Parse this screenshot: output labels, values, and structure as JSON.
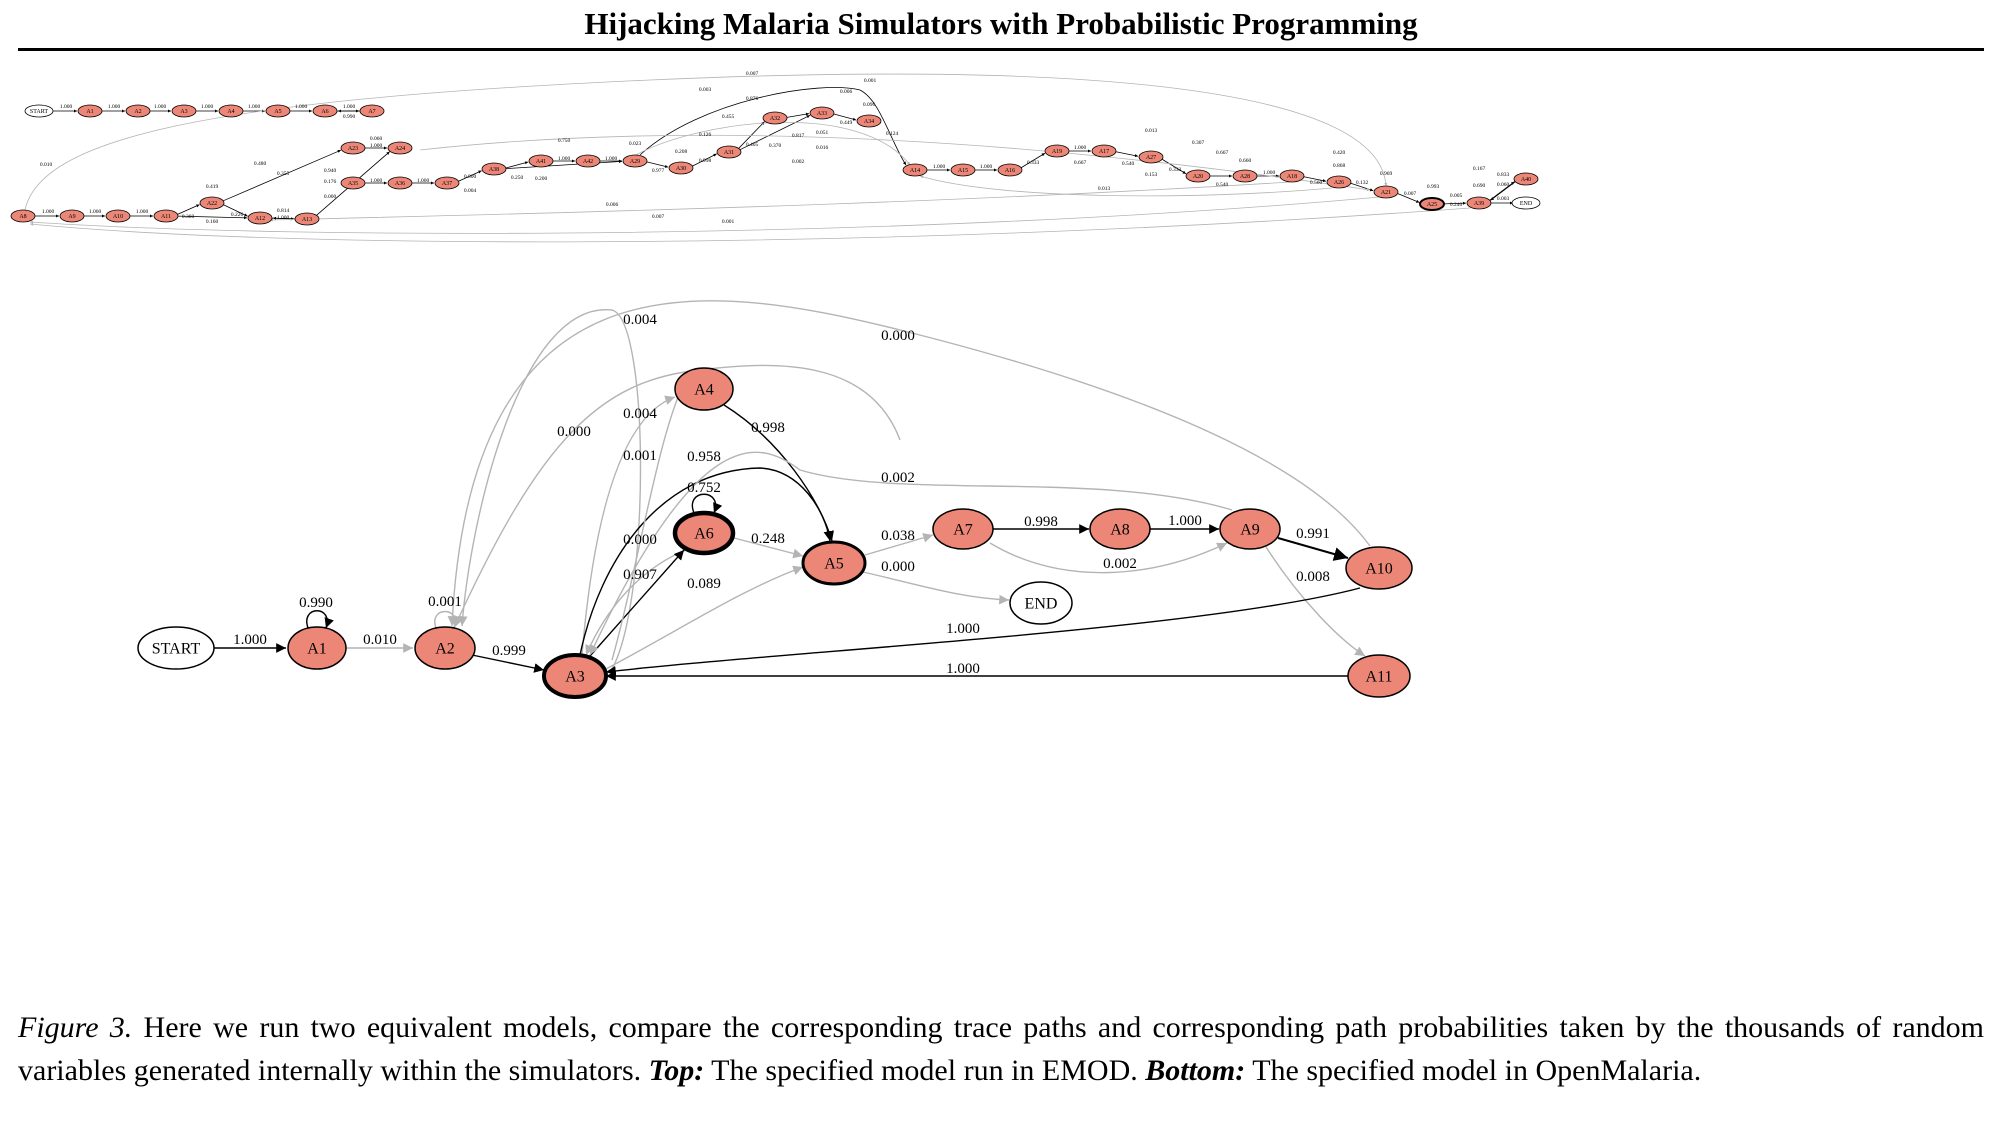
{
  "header": {
    "running_title": "Hijacking Malaria Simulators with Probabilistic Programming"
  },
  "colors": {
    "node_fill": "#ec8778",
    "node_stroke": "#000000",
    "edge_strong": "#000000",
    "edge_weak": "#b4b4b4",
    "terminal_fill": "#ffffff"
  },
  "top_graph": {
    "nodes": [
      "START",
      "A1",
      "A2",
      "A3",
      "A4",
      "A5",
      "A6",
      "A7",
      "A8",
      "A9",
      "A10",
      "A11",
      "A12",
      "A13",
      "A14",
      "A15",
      "A16",
      "A17",
      "A18",
      "A19",
      "A20",
      "A21",
      "A22",
      "A23",
      "A24",
      "A25",
      "A26",
      "A27",
      "A28",
      "A29",
      "A30",
      "A31",
      "A32",
      "A33",
      "A34",
      "A35",
      "A36",
      "A37",
      "A38",
      "A39",
      "A40",
      "A41",
      "A42",
      "END"
    ],
    "edge_labels": [
      "1.000",
      "1.000",
      "1.000",
      "1.000",
      "1.000",
      "1.000",
      "1.000",
      "0.990",
      "0.010",
      "1.000",
      "1.000",
      "1.000",
      "0.360",
      "0.160",
      "0.419",
      "0.226",
      "0.480",
      "0.355",
      "0.814",
      "1.000",
      "0.940",
      "0.060",
      "1.000",
      "0.176",
      "0.000",
      "1.000",
      "1.000",
      "0.800",
      "0.250",
      "0.200",
      "0.004",
      "1.000",
      "1.000",
      "0.750",
      "0.023",
      "0.977",
      "0.208",
      "0.998",
      "0.126",
      "0.405",
      "0.455",
      "0.876",
      "0.817",
      "0.370",
      "0.051",
      "0.449",
      "0.016",
      "0.096",
      "0.124",
      "0.006",
      "0.002",
      "1.000",
      "1.000",
      "0.333",
      "0.667",
      "1.000",
      "0.540",
      "0.153",
      "0.333",
      "0.307",
      "0.667",
      "0.660",
      "0.540",
      "1.000",
      "0.560",
      "0.420",
      "0.868",
      "0.132",
      "0.969",
      "0.013",
      "0.013",
      "0.007",
      "0.993",
      "0.005",
      "0.240",
      "0.690",
      "0.060",
      "0.833",
      "0.167",
      "0.003",
      "0.006",
      "0.007",
      "0.001",
      "0.007",
      "0.003",
      "0.001"
    ]
  },
  "bottom_graph": {
    "nodes": [
      "START",
      "A1",
      "A2",
      "A3",
      "A4",
      "A5",
      "A6",
      "A7",
      "A8",
      "A9",
      "A10",
      "A11",
      "END"
    ],
    "edge_labels": [
      "1.000",
      "0.990",
      "0.010",
      "0.001",
      "0.999",
      "0.004",
      "0.000",
      "0.004",
      "0.001",
      "0.998",
      "0.958",
      "0.752",
      "0.000",
      "0.907",
      "0.248",
      "0.089",
      "0.002",
      "0.038",
      "0.000",
      "0.998",
      "1.000",
      "0.002",
      "0.991",
      "0.008",
      "1.000",
      "1.000",
      "0.000"
    ]
  },
  "caption": {
    "figure_label": "Figure 3.",
    "text_1": " Here we run two equivalent models, compare the corresponding trace paths and corresponding path probabilities taken by the thousands of random variables generated internally within the simulators. ",
    "top_label": "Top:",
    "text_2": " The specified model run in EMOD. ",
    "bottom_label": "Bottom:",
    "text_3": " The specified model in OpenMalaria."
  }
}
